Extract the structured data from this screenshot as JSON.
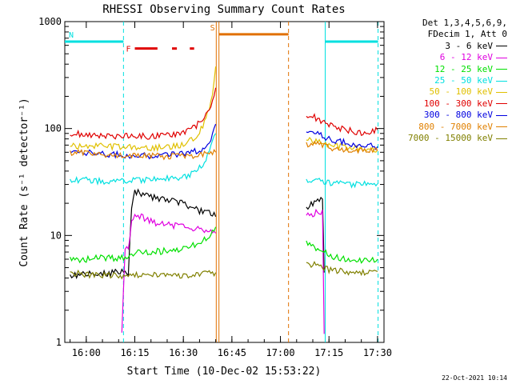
{
  "chart_data": {
    "type": "line",
    "title": "RHESSI Observing Summary Count Rates",
    "xlabel": "Start Time (10-Dec-02 15:53:22)",
    "ylabel": "Count Rate (s⁻¹ detector⁻¹)",
    "yscale": "log",
    "ylim": [
      1,
      1000
    ],
    "xlim": [
      "15:53:22",
      "17:32:00"
    ],
    "x_ticks": [
      "16:00",
      "16:15",
      "16:30",
      "16:45",
      "17:00",
      "17:15",
      "17:30"
    ],
    "y_ticks": [
      "1",
      "10",
      "100",
      "1000"
    ],
    "grid": false,
    "legend_header": [
      "Det 1,3,4,5,6,9,",
      "FDecim 1, Att 0"
    ],
    "legend_position": "right",
    "annotations": [
      {
        "text": "N",
        "color": "#00e0e0"
      },
      {
        "text": "F",
        "color": "#e00000"
      },
      {
        "text": "S",
        "color": "#e07000"
      }
    ],
    "timestamp": "22-Oct-2021 10:14",
    "series": [
      {
        "name": "3 - 6 keV",
        "color": "#000000",
        "segments": [
          [
            [
              "15:55",
              4.2
            ],
            [
              "16:09",
              4.5
            ],
            [
              "16:13",
              4.5
            ],
            [
              "16:14",
              18
            ],
            [
              "16:15",
              26
            ],
            [
              "16:18",
              24
            ],
            [
              "16:22",
              22
            ],
            [
              "16:26",
              21
            ],
            [
              "16:30",
              20
            ],
            [
              "16:35",
              17
            ],
            [
              "16:39",
              16
            ],
            [
              "16:40",
              15
            ]
          ],
          [
            [
              "17:08",
              18
            ],
            [
              "17:10",
              20
            ],
            [
              "17:12",
              22
            ],
            [
              "17:13",
              22
            ],
            [
              "17:13.5",
              4.5
            ]
          ]
        ]
      },
      {
        "name": "6 - 12 keV",
        "color": "#e000e0",
        "segments": [
          [
            [
              "16:11",
              1.2
            ],
            [
              "16:12",
              7.5
            ],
            [
              "16:13",
              8
            ],
            [
              "16:14",
              13
            ],
            [
              "16:15",
              16
            ],
            [
              "16:18",
              14.5
            ],
            [
              "16:22",
              13
            ],
            [
              "16:26",
              12.5
            ],
            [
              "16:30",
              12
            ],
            [
              "16:35",
              11.5
            ],
            [
              "16:39",
              11
            ],
            [
              "16:40",
              10.5
            ]
          ],
          [
            [
              "17:08",
              15
            ],
            [
              "17:10",
              16
            ],
            [
              "17:12",
              17
            ],
            [
              "17:13",
              16.5
            ],
            [
              "17:13.5",
              1.2
            ]
          ]
        ]
      },
      {
        "name": "12 - 25 keV",
        "color": "#00e000",
        "segments": [
          [
            [
              "15:55",
              6
            ],
            [
              "16:00",
              6
            ],
            [
              "16:05",
              6.2
            ],
            [
              "16:10",
              6
            ],
            [
              "16:14",
              6.5
            ],
            [
              "16:15",
              7
            ],
            [
              "16:20",
              7
            ],
            [
              "16:25",
              7.2
            ],
            [
              "16:30",
              7.5
            ],
            [
              "16:35",
              8.5
            ],
            [
              "16:38",
              10
            ],
            [
              "16:40",
              12
            ]
          ],
          [
            [
              "17:08",
              8.5
            ],
            [
              "17:10",
              8
            ],
            [
              "17:12",
              7.5
            ],
            [
              "17:15",
              6.5
            ],
            [
              "17:20",
              6
            ],
            [
              "17:25",
              5.8
            ],
            [
              "17:30",
              6
            ]
          ]
        ]
      },
      {
        "name": "25 - 50 keV",
        "color": "#00e0e0",
        "segments": [
          [
            [
              "15:55",
              33
            ],
            [
              "16:00",
              33
            ],
            [
              "16:05",
              32
            ],
            [
              "16:10",
              31.5
            ],
            [
              "16:15",
              33
            ],
            [
              "16:20",
              33
            ],
            [
              "16:25",
              34
            ],
            [
              "16:30",
              35
            ],
            [
              "16:33",
              38
            ],
            [
              "16:36",
              45
            ],
            [
              "16:38",
              60
            ],
            [
              "16:40",
              90
            ]
          ],
          [
            [
              "17:08",
              33
            ],
            [
              "17:10",
              32.5
            ],
            [
              "17:13",
              32
            ],
            [
              "17:16",
              31
            ],
            [
              "17:20",
              30
            ],
            [
              "17:25",
              30
            ],
            [
              "17:30",
              30.5
            ]
          ]
        ]
      },
      {
        "name": "50 - 100 keV",
        "color": "#e0c000",
        "segments": [
          [
            [
              "15:55",
              70
            ],
            [
              "16:00",
              69
            ],
            [
              "16:05",
              68
            ],
            [
              "16:10",
              67
            ],
            [
              "16:15",
              66
            ],
            [
              "16:20",
              66
            ],
            [
              "16:25",
              67
            ],
            [
              "16:30",
              70
            ],
            [
              "16:34",
              85
            ],
            [
              "16:37",
              120
            ],
            [
              "16:39",
              200
            ],
            [
              "16:40",
              380
            ]
          ],
          [
            [
              "17:08",
              80
            ],
            [
              "17:12",
              76
            ],
            [
              "17:15",
              70
            ],
            [
              "17:20",
              66
            ],
            [
              "17:25",
              64
            ],
            [
              "17:30",
              63
            ]
          ]
        ]
      },
      {
        "name": "100 - 300 keV",
        "color": "#e00000",
        "segments": [
          [
            [
              "15:55",
              90
            ],
            [
              "16:00",
              88
            ],
            [
              "16:05",
              86
            ],
            [
              "16:09",
              85
            ],
            [
              "16:10",
              88
            ],
            [
              "16:15",
              85
            ],
            [
              "16:20",
              85
            ],
            [
              "16:25",
              86
            ],
            [
              "16:30",
              90
            ],
            [
              "16:34",
              105
            ],
            [
              "16:37",
              140
            ],
            [
              "16:39",
              180
            ],
            [
              "16:40",
              240
            ]
          ],
          [
            [
              "17:08",
              135
            ],
            [
              "17:10",
              130
            ],
            [
              "17:12",
              120
            ],
            [
              "17:15",
              110
            ],
            [
              "17:18",
              100
            ],
            [
              "17:22",
              95
            ],
            [
              "17:26",
              90
            ],
            [
              "17:30",
              97
            ]
          ]
        ]
      },
      {
        "name": "300 - 800 keV",
        "color": "#0000e0",
        "segments": [
          [
            [
              "15:55",
              62
            ],
            [
              "16:00",
              60
            ],
            [
              "16:05",
              58
            ],
            [
              "16:10",
              57
            ],
            [
              "16:15",
              56
            ],
            [
              "16:20",
              56
            ],
            [
              "16:25",
              57
            ],
            [
              "16:30",
              58
            ],
            [
              "16:35",
              62
            ],
            [
              "16:38",
              75
            ],
            [
              "16:40",
              110
            ]
          ],
          [
            [
              "17:08",
              95
            ],
            [
              "17:12",
              90
            ],
            [
              "17:15",
              80
            ],
            [
              "17:20",
              74
            ],
            [
              "17:25",
              70
            ],
            [
              "17:30",
              68
            ]
          ]
        ]
      },
      {
        "name": "800 - 7000 keV",
        "color": "#e08000",
        "segments": [
          [
            [
              "15:55",
              60
            ],
            [
              "16:00",
              58
            ],
            [
              "16:05",
              57
            ],
            [
              "16:10",
              56
            ],
            [
              "16:15",
              55
            ],
            [
              "16:20",
              55
            ],
            [
              "16:25",
              55
            ],
            [
              "16:30",
              55
            ],
            [
              "16:35",
              56
            ],
            [
              "16:38",
              58
            ],
            [
              "16:40",
              60
            ]
          ],
          [
            [
              "17:08",
              72
            ],
            [
              "17:12",
              70
            ],
            [
              "17:15",
              66
            ],
            [
              "17:20",
              63
            ],
            [
              "17:25",
              61
            ],
            [
              "17:30",
              62
            ]
          ]
        ]
      },
      {
        "name": "7000 - 15000 keV",
        "color": "#808000",
        "segments": [
          [
            [
              "15:55",
              4.5
            ],
            [
              "16:00",
              4.3
            ],
            [
              "16:05",
              4.3
            ],
            [
              "16:10",
              4.2
            ],
            [
              "16:15",
              4.3
            ],
            [
              "16:20",
              4.2
            ],
            [
              "16:25",
              4.3
            ],
            [
              "16:30",
              4.2
            ],
            [
              "16:35",
              4.4
            ],
            [
              "16:40",
              4.5
            ]
          ],
          [
            [
              "17:08",
              5.5
            ],
            [
              "17:12",
              5.2
            ],
            [
              "17:15",
              4.8
            ],
            [
              "17:20",
              4.6
            ],
            [
              "17:25",
              4.5
            ],
            [
              "17:30",
              4.6
            ]
          ]
        ]
      }
    ],
    "flag_bars": [
      {
        "label_ref": "N",
        "color": "#00e0e0",
        "y": 650,
        "spans": [
          [
            "15:53:22",
            "16:11:30"
          ],
          [
            "17:13:50",
            "17:30:10"
          ]
        ]
      },
      {
        "label_ref": "F",
        "color": "#e00000",
        "y": 560,
        "spans": [
          [
            "16:15:00",
            "16:22:00"
          ],
          [
            "16:26:30",
            "16:28:00"
          ],
          [
            "16:32:00",
            "16:33:20"
          ]
        ]
      },
      {
        "label_ref": "S",
        "color": "#e07000",
        "y": 760,
        "spans": [
          [
            "16:41:00",
            "17:02:30"
          ]
        ]
      }
    ],
    "vertical_lines": [
      {
        "time": "16:11:30",
        "color": "#00e0e0",
        "dash": true
      },
      {
        "time": "17:13:50",
        "color": "#00e0e0",
        "dash": false
      },
      {
        "time": "17:30:10",
        "color": "#00e0e0",
        "dash": true
      },
      {
        "time": "16:40:10",
        "color": "#e07000",
        "dash": false
      },
      {
        "time": "16:41:00",
        "color": "#e07000",
        "dash": false
      },
      {
        "time": "17:02:30",
        "color": "#e07000",
        "dash": true
      }
    ]
  }
}
